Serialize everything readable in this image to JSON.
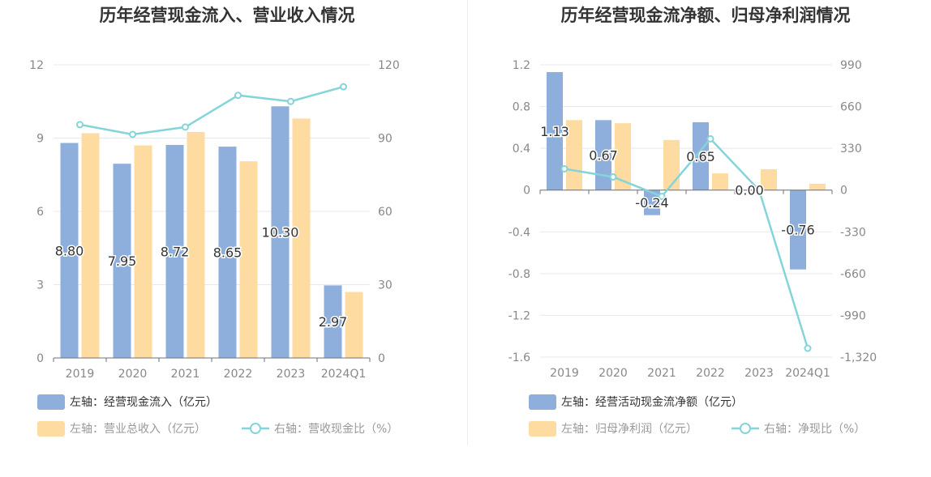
{
  "colors": {
    "bar_primary": "#8eaedc",
    "bar_secondary": "#fedba1",
    "line": "#84d4d9",
    "axis_text": "#888888",
    "title_text": "#333333",
    "grid": "#e6e8f0"
  },
  "chart_data": [
    {
      "type": "bar",
      "title": "历年经营现金流入、营业收入情况",
      "categories": [
        "2019",
        "2020",
        "2021",
        "2022",
        "2023",
        "2024Q1"
      ],
      "y_left": {
        "ticks": [
          "0",
          "3",
          "6",
          "9",
          "12"
        ],
        "ylim": [
          0,
          12
        ]
      },
      "y_right": {
        "ticks": [
          "0",
          "30",
          "60",
          "90",
          "120"
        ],
        "ylim": [
          0,
          120
        ]
      },
      "series": [
        {
          "name": "左轴：经营现金流入（亿元）",
          "kind": "bar",
          "axis": "left",
          "values": [
            8.8,
            7.95,
            8.72,
            8.65,
            10.3,
            2.97
          ],
          "labels": [
            "8.80",
            "7.95",
            "8.72",
            "8.65",
            "10.30",
            "2.97"
          ]
        },
        {
          "name": "左轴：营业总收入（亿元）",
          "kind": "bar",
          "axis": "left",
          "values": [
            9.2,
            8.7,
            9.25,
            8.05,
            9.8,
            2.7
          ]
        },
        {
          "name": "右轴：营收现金比（%）",
          "kind": "line",
          "axis": "right",
          "values": [
            95.5,
            91.5,
            94.5,
            107.5,
            105,
            111
          ]
        }
      ],
      "legend": [
        {
          "label": "左轴：经营现金流入（亿元）",
          "kind": "bar",
          "color": "#8eaedc"
        },
        {
          "label": "左轴：营业总收入（亿元）",
          "kind": "bar",
          "color": "#fedba1"
        },
        {
          "label": "右轴：营收现金比（%）",
          "kind": "line",
          "color": "#84d4d9"
        }
      ],
      "legend_position": "bottom",
      "grid": true
    },
    {
      "type": "bar",
      "title": "历年经营现金流净额、归母净利润情况",
      "categories": [
        "2019",
        "2020",
        "2021",
        "2022",
        "2023",
        "2024Q1"
      ],
      "y_left": {
        "ticks": [
          "-1.6",
          "-1.2",
          "-0.8",
          "-0.4",
          "0",
          "0.4",
          "0.8",
          "1.2"
        ],
        "ylim": [
          -1.6,
          1.2
        ]
      },
      "y_right": {
        "ticks": [
          "-1,320",
          "-990",
          "-660",
          "-330",
          "0",
          "330",
          "660",
          "990"
        ],
        "ylim": [
          -1320,
          990
        ]
      },
      "series": [
        {
          "name": "左轴：经营活动现金流净额（亿元）",
          "kind": "bar",
          "axis": "left",
          "values": [
            1.13,
            0.67,
            -0.24,
            0.65,
            0.0,
            -0.76
          ],
          "labels": [
            "1.13",
            "0.67",
            "-0.24",
            "0.65",
            "0.00",
            "-0.76"
          ]
        },
        {
          "name": "左轴：归母净利润（亿元）",
          "kind": "bar",
          "axis": "left",
          "values": [
            0.67,
            0.64,
            0.48,
            0.16,
            0.2,
            0.06
          ]
        },
        {
          "name": "右轴：净现比（%）",
          "kind": "line",
          "axis": "right",
          "values": [
            168,
            104,
            -50,
            405,
            0,
            -1250
          ]
        }
      ],
      "legend": [
        {
          "label": "左轴：经营活动现金流净额（亿元）",
          "kind": "bar",
          "color": "#8eaedc"
        },
        {
          "label": "左轴：归母净利润（亿元）",
          "kind": "bar",
          "color": "#fedba1"
        },
        {
          "label": "右轴：净现比（%）",
          "kind": "line",
          "color": "#84d4d9"
        }
      ],
      "legend_position": "bottom",
      "grid": true
    }
  ]
}
